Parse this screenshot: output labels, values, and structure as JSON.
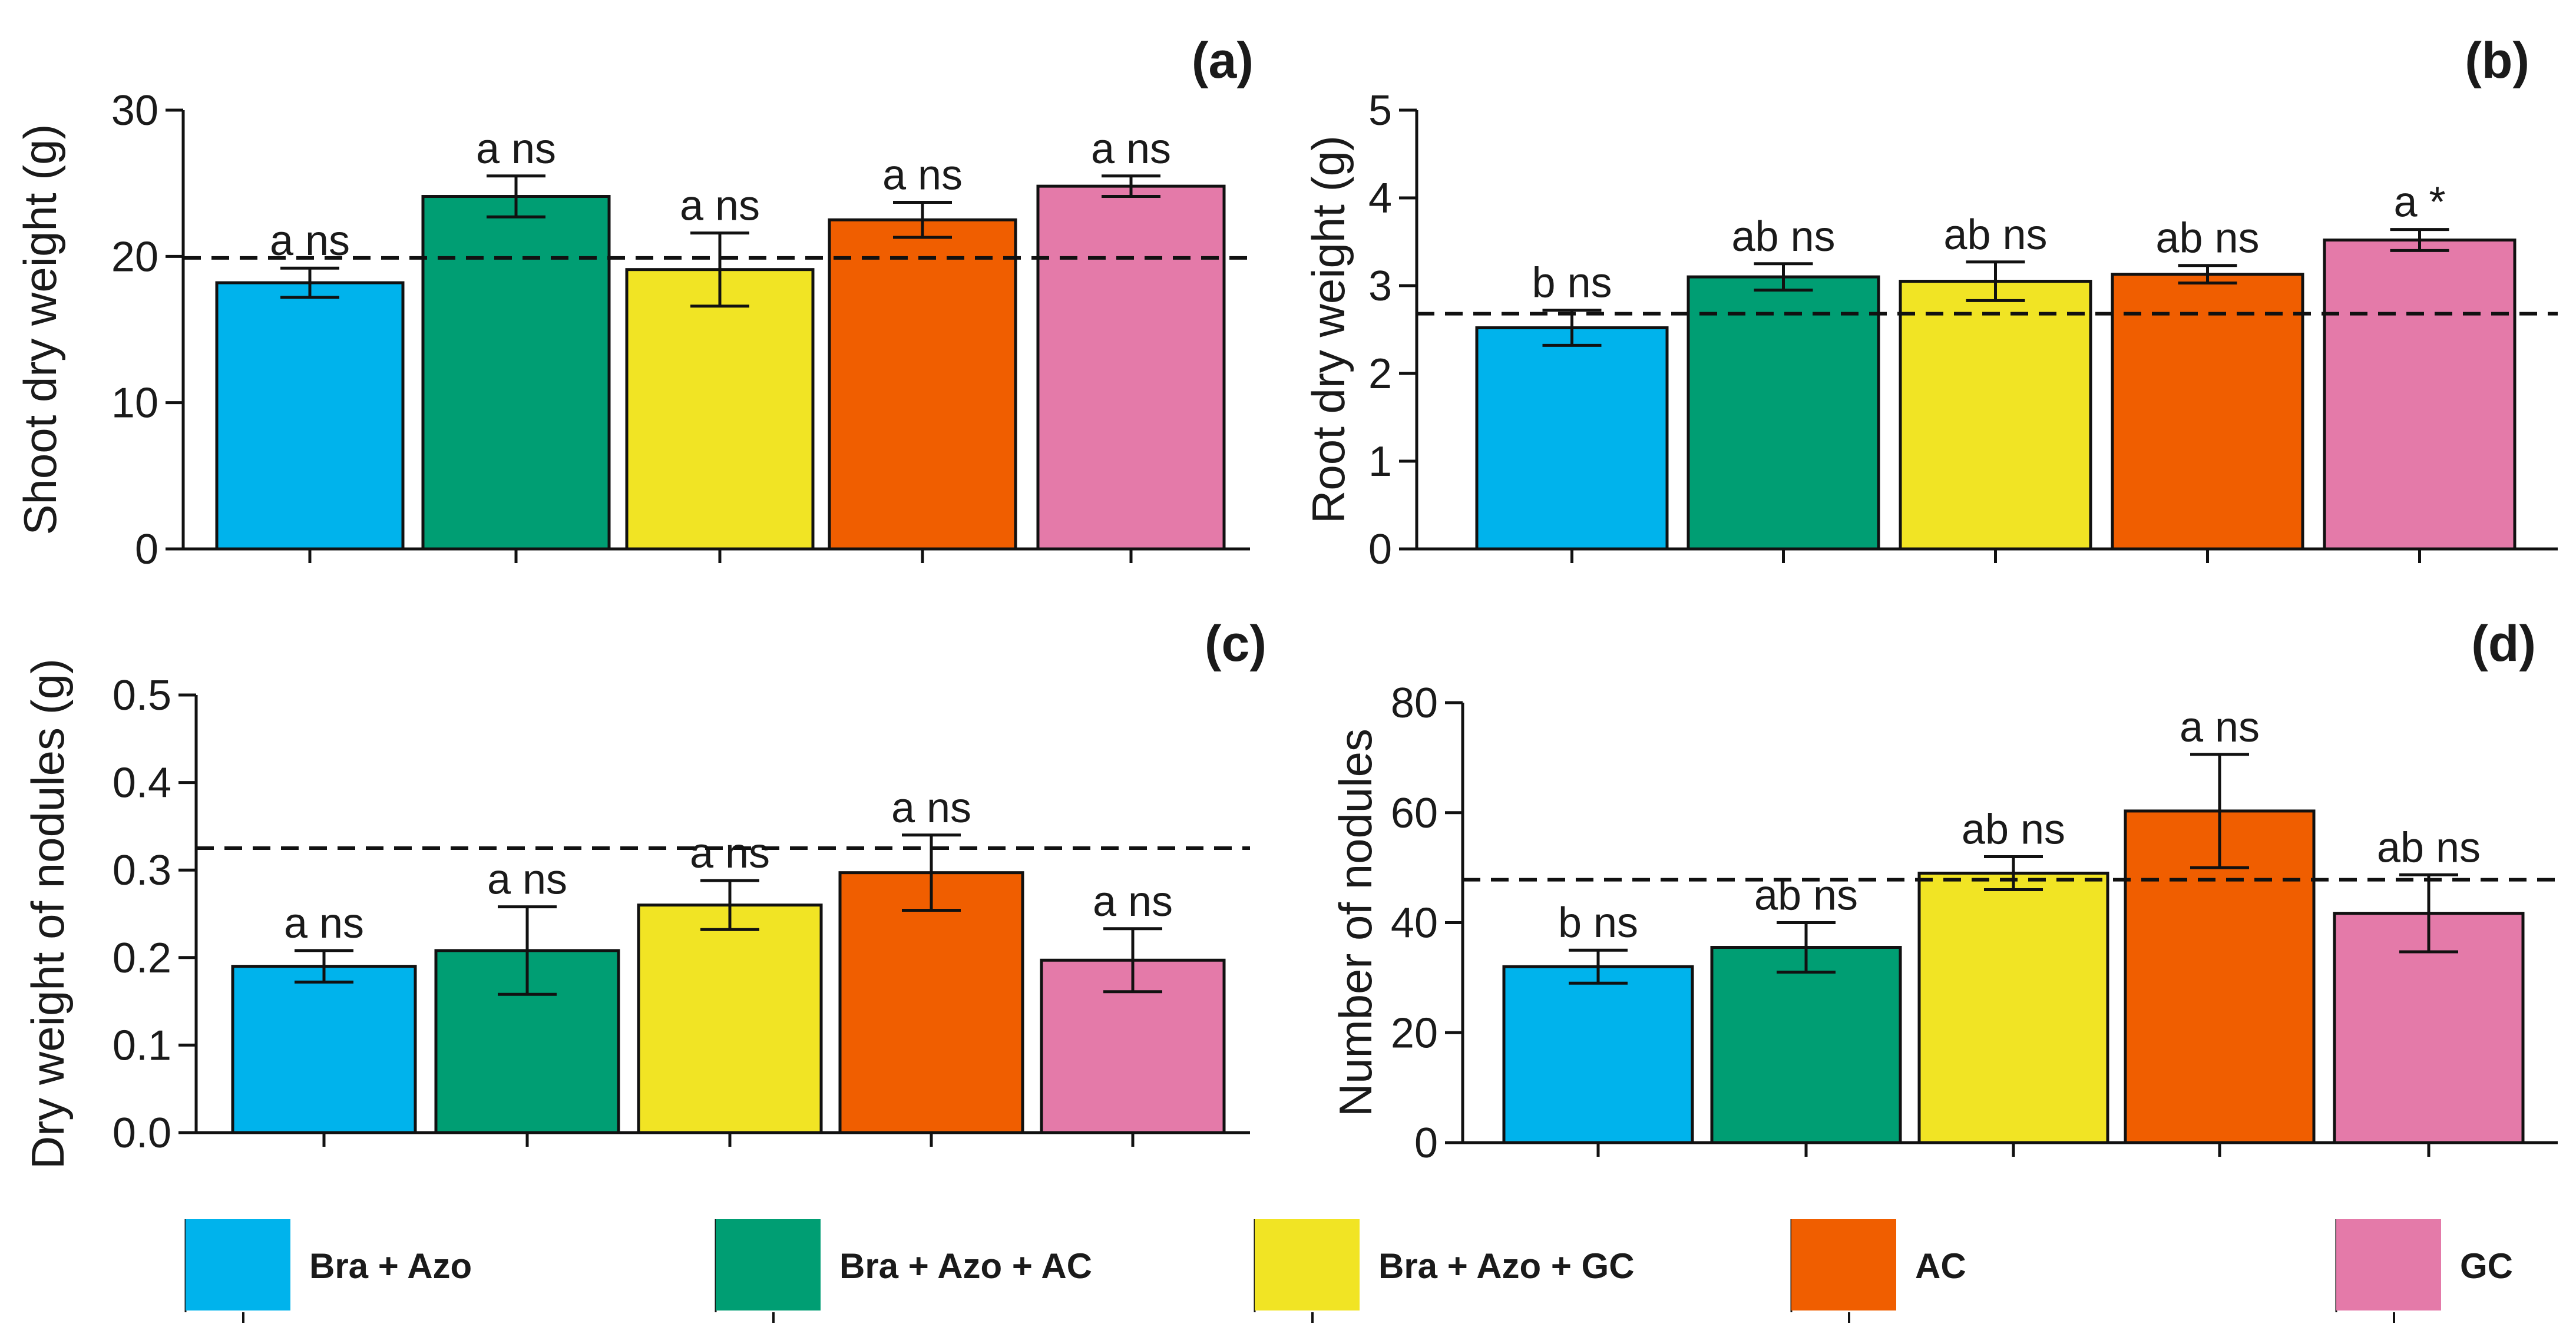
{
  "colors": {
    "Bra + Azo": "#00b3ec",
    "Bra + Azo + AC": "#009e73",
    "Bra + Azo + GC": "#f1e424",
    "AC": "#f05e00",
    "GC": "#e47aa9"
  },
  "legend": {
    "items": [
      {
        "label": "Bra + Azo",
        "color": "#00b3ec"
      },
      {
        "label": "Bra + Azo + AC",
        "color": "#009e73"
      },
      {
        "label": "Bra + Azo + GC",
        "color": "#f1e424"
      },
      {
        "label": "AC",
        "color": "#f05e00"
      },
      {
        "label": "GC",
        "color": "#e47aa9"
      }
    ]
  },
  "chart_data": [
    {
      "type": "bar",
      "panel": "(a)",
      "ylabel": "Shoot dry weight (g)",
      "xlabel": "",
      "categories": [
        "Bra + Azo",
        "Bra + Azo + AC",
        "Bra + Azo + GC",
        "AC",
        "GC"
      ],
      "values": [
        18.2,
        24.1,
        19.1,
        22.5,
        24.8
      ],
      "errors": [
        1.0,
        1.4,
        2.5,
        1.2,
        0.7
      ],
      "labels": [
        "a ns",
        "a ns",
        "a ns",
        "a ns",
        "a ns"
      ],
      "reference_line": 19.9,
      "ylim": [
        0,
        30
      ],
      "yticks": [
        0,
        10,
        20,
        30
      ],
      "ytick_labels": [
        "0",
        "10",
        "20",
        "30"
      ]
    },
    {
      "type": "bar",
      "panel": "(b)",
      "ylabel": "Root dry weight (g)",
      "xlabel": "",
      "categories": [
        "Bra + Azo",
        "Bra + Azo + AC",
        "Bra + Azo + GC",
        "AC",
        "GC"
      ],
      "values": [
        2.52,
        3.1,
        3.05,
        3.13,
        3.52
      ],
      "errors": [
        0.2,
        0.15,
        0.22,
        0.1,
        0.12
      ],
      "labels": [
        "b ns",
        "ab ns",
        "ab ns",
        "ab ns",
        "a *"
      ],
      "reference_line": 2.68,
      "ylim": [
        0,
        5
      ],
      "yticks": [
        0,
        1,
        2,
        3,
        4,
        5
      ],
      "ytick_labels": [
        "0",
        "1",
        "2",
        "3",
        "4",
        "5"
      ]
    },
    {
      "type": "bar",
      "panel": "(c)",
      "ylabel": "Dry weight of nodules (g)",
      "xlabel": "",
      "categories": [
        "Bra + Azo",
        "Bra + Azo + AC",
        "Bra + Azo + GC",
        "AC",
        "GC"
      ],
      "values": [
        0.19,
        0.208,
        0.26,
        0.297,
        0.197
      ],
      "errors": [
        0.018,
        0.05,
        0.028,
        0.043,
        0.036
      ],
      "labels": [
        "a ns",
        "a ns",
        "a ns",
        "a ns",
        "a ns"
      ],
      "reference_line": 0.325,
      "ylim": [
        0,
        0.5
      ],
      "yticks": [
        0,
        0.1,
        0.2,
        0.3,
        0.4,
        0.5
      ],
      "ytick_labels": [
        "0.0",
        "0.1",
        "0.2",
        "0.3",
        "0.4",
        "0.5"
      ]
    },
    {
      "type": "bar",
      "panel": "(d)",
      "ylabel": "Number of nodules",
      "xlabel": "",
      "categories": [
        "Bra + Azo",
        "Bra + Azo + AC",
        "Bra + Azo + GC",
        "AC",
        "GC"
      ],
      "values": [
        32,
        35.5,
        49,
        60.3,
        41.7
      ],
      "errors": [
        3,
        4.5,
        3,
        10.3,
        7
      ],
      "labels": [
        "b ns",
        "ab ns",
        "ab ns",
        "a ns",
        "ab ns"
      ],
      "reference_line": 47.8,
      "ylim": [
        0,
        80
      ],
      "yticks": [
        0,
        20,
        40,
        60,
        80
      ],
      "ytick_labels": [
        "0",
        "20",
        "40",
        "60",
        "80"
      ]
    }
  ]
}
